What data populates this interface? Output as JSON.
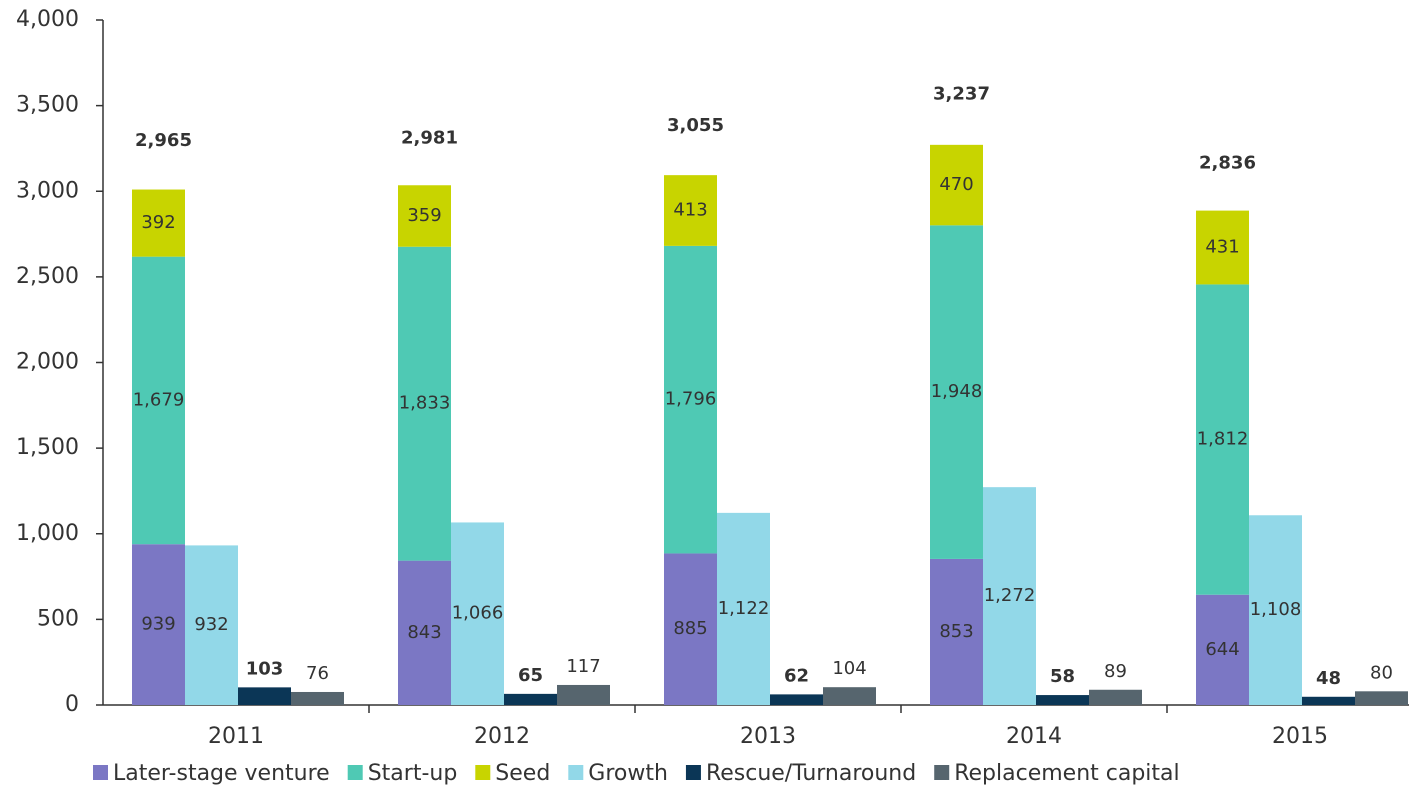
{
  "chart_data": {
    "type": "bar",
    "categories": [
      "2011",
      "2012",
      "2013",
      "2014",
      "2015"
    ],
    "series": [
      {
        "name": "Later-stage venture",
        "color": "#7b77c4",
        "values": [
          939,
          843,
          885,
          853,
          644
        ],
        "value_labels": [
          "939",
          "843",
          "885",
          "853",
          "644"
        ]
      },
      {
        "name": "Start-up",
        "color": "#4fc9b4",
        "values": [
          1679,
          1833,
          1796,
          1948,
          1812
        ],
        "value_labels": [
          "1,679",
          "1,833",
          "1,796",
          "1,948",
          "1,812"
        ]
      },
      {
        "name": "Seed",
        "color": "#c8d400",
        "values": [
          392,
          359,
          413,
          470,
          431
        ],
        "value_labels": [
          "392",
          "359",
          "413",
          "470",
          "431"
        ]
      },
      {
        "name": "Growth",
        "color": "#92d8e8",
        "values": [
          932,
          1066,
          1122,
          1272,
          1108
        ],
        "value_labels": [
          "932",
          "1,066",
          "1,122",
          "1,272",
          "1,108"
        ]
      },
      {
        "name": "Rescue/Turnaround",
        "color": "#0b3656",
        "values": [
          103,
          65,
          62,
          58,
          48
        ],
        "value_labels": [
          "103",
          "65",
          "62",
          "58",
          "48"
        ]
      },
      {
        "name": "Replacement capital",
        "color": "#56656e",
        "values": [
          76,
          117,
          104,
          89,
          80
        ],
        "value_labels": [
          "76",
          "117",
          "104",
          "89",
          "80"
        ]
      }
    ],
    "totals": {
      "values": [
        2965,
        2981,
        3055,
        3237,
        2836
      ],
      "value_labels": [
        "2,965",
        "2,981",
        "3,055",
        "3,237",
        "2,836"
      ]
    },
    "ylim": [
      0,
      4000
    ],
    "yticks": [
      0,
      500,
      {
        "value": 1000,
        "label": "1,000"
      },
      {
        "value": 1500,
        "label": "1,500"
      },
      {
        "value": 2000,
        "label": "2,000"
      },
      {
        "value": 2500,
        "label": "2,500"
      },
      {
        "value": 3000,
        "label": "3,000"
      },
      {
        "value": 3500,
        "label": "3,500"
      },
      {
        "value": 4000,
        "label": "4,000"
      }
    ],
    "legend": "bottom"
  }
}
